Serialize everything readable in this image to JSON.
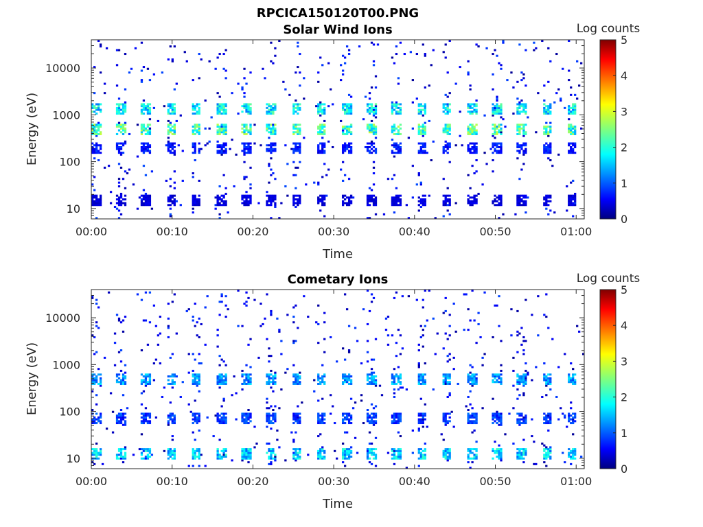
{
  "figure_title": "RPCICA150120T00.PNG",
  "colors": {
    "axes": "#262626",
    "background": "#ffffff",
    "colormap": "jet"
  },
  "chart_data": [
    {
      "type": "heatmap",
      "title": "Solar Wind Ions",
      "xlabel": "Time",
      "ylabel": "Energy (eV)",
      "x_ticks": [
        "00:00",
        "00:10",
        "00:20",
        "00:30",
        "00:40",
        "00:50",
        "01:00"
      ],
      "y_ticks": [
        "10",
        "100",
        "1000",
        "10000"
      ],
      "y_scale": "log",
      "ylim": [
        6,
        40000
      ],
      "xlim_minutes": [
        0,
        61
      ],
      "colorbar": {
        "label": "Log counts",
        "ticks": [
          "0",
          "1",
          "2",
          "3",
          "4",
          "5"
        ],
        "range": [
          0,
          5
        ]
      },
      "sweep_period_minutes": 3.1,
      "bands": [
        {
          "energy": 1300,
          "level": 2.0
        },
        {
          "energy": 500,
          "level": 2.4
        },
        {
          "energy": 200,
          "level": 0.8
        },
        {
          "energy": 15,
          "level": 0.5
        }
      ]
    },
    {
      "type": "heatmap",
      "title": "Cometary Ions",
      "xlabel": "Time",
      "ylabel": "Energy (eV)",
      "x_ticks": [
        "00:00",
        "00:10",
        "00:20",
        "00:30",
        "00:40",
        "00:50",
        "01:00"
      ],
      "y_ticks": [
        "10",
        "100",
        "1000",
        "10000"
      ],
      "y_scale": "log",
      "ylim": [
        6,
        40000
      ],
      "xlim_minutes": [
        0,
        61
      ],
      "colorbar": {
        "label": "Log counts",
        "ticks": [
          "0",
          "1",
          "2",
          "3",
          "4",
          "5"
        ],
        "range": [
          0,
          5
        ]
      },
      "sweep_period_minutes": 3.1,
      "bands": [
        {
          "energy": 500,
          "level": 1.5
        },
        {
          "energy": 70,
          "level": 1.0
        },
        {
          "energy": 12,
          "level": 1.8
        }
      ]
    }
  ]
}
